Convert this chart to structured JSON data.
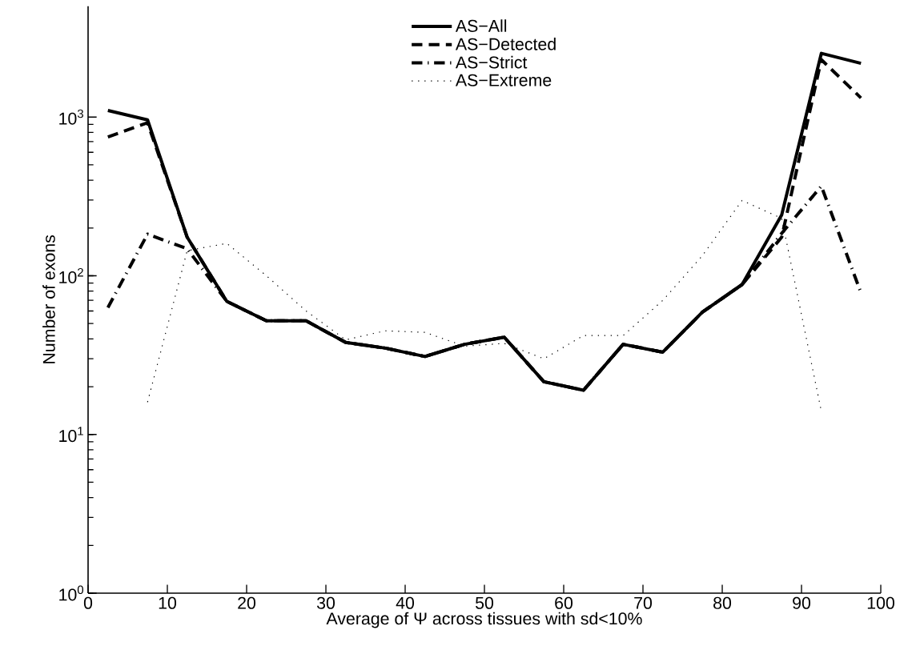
{
  "chart_data": {
    "type": "line",
    "xlabel": "Average of Ψ across tissues with sd<10%",
    "ylabel": "Number of exons",
    "x": [
      2.5,
      7.5,
      12.5,
      17.5,
      22.5,
      27.5,
      32.5,
      37.5,
      42.5,
      47.5,
      52.5,
      57.5,
      62.5,
      67.5,
      72.5,
      77.5,
      82.5,
      87.5,
      92.5,
      97.5
    ],
    "series": [
      {
        "name": "AS−All",
        "color": "#000000",
        "line_style": "solid",
        "values": [
          1100,
          960,
          175,
          69,
          52,
          52,
          38,
          35,
          31,
          37,
          41,
          21.5,
          19,
          37,
          33,
          59,
          88,
          242,
          2520,
          2180
        ]
      },
      {
        "name": "AS−Detected",
        "color": "#000000",
        "line_style": "dashed",
        "values": [
          750,
          920,
          175,
          69,
          52,
          52,
          38,
          35,
          31,
          37,
          41,
          21.5,
          19,
          37,
          33,
          59,
          88,
          175,
          2300,
          1320
        ]
      },
      {
        "name": "AS−Strict",
        "color": "#000000",
        "line_style": "dashdot",
        "values": [
          63,
          183,
          148,
          69,
          52,
          52,
          38,
          35,
          31,
          37,
          41,
          21.5,
          19,
          37,
          33,
          59,
          88,
          185,
          367,
          78
        ]
      },
      {
        "name": "AS−Extreme",
        "color": "#000000",
        "line_style": "dotted",
        "values": [
          null,
          16,
          144,
          160,
          100,
          60,
          39.5,
          45,
          44,
          36,
          37.5,
          30,
          42,
          42,
          70,
          134,
          298,
          230,
          14,
          null
        ]
      }
    ],
    "log": "y",
    "xlim": [
      0,
      100
    ],
    "ylim": [
      1,
      5000
    ],
    "xticks": [
      0,
      10,
      20,
      30,
      40,
      50,
      60,
      70,
      80,
      90,
      100
    ],
    "yticks": [
      {
        "value": 1,
        "label": "10$^{0}$"
      },
      {
        "value": 10,
        "label": "10$^{1}$"
      },
      {
        "value": 100,
        "label": "10$^{2}$"
      },
      {
        "value": 1000,
        "label": "10$^{3}$"
      }
    ],
    "legend": "top",
    "marker": "none"
  }
}
